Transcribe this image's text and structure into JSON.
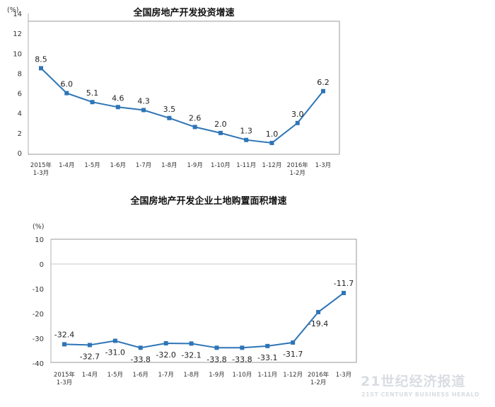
{
  "chart_data": [
    {
      "type": "line",
      "title": "全国房地产开发投资增速",
      "unit": "(%)",
      "categories": [
        [
          "2015年",
          "1-3月"
        ],
        [
          "1-4月"
        ],
        [
          "1-5月"
        ],
        [
          "1-6月"
        ],
        [
          "1-7月"
        ],
        [
          "1-8月"
        ],
        [
          "1-9月"
        ],
        [
          "1-10月"
        ],
        [
          "1-11月"
        ],
        [
          "1-12月"
        ],
        [
          "2016年",
          "1-2月"
        ],
        [
          "1-3月"
        ]
      ],
      "values": [
        8.5,
        6.0,
        5.1,
        4.6,
        4.3,
        3.5,
        2.6,
        2.0,
        1.3,
        1.0,
        3.0,
        6.2
      ],
      "value_labels": [
        "8.5",
        "6.0",
        "5.1",
        "4.6",
        "4.3",
        "3.5",
        "2.6",
        "2.0",
        "1.3",
        "1.0",
        "3.0",
        "6.2"
      ],
      "label_position": [
        "above",
        "above",
        "above",
        "above",
        "above",
        "above",
        "above",
        "above",
        "above",
        "above",
        "above",
        "above"
      ],
      "ylim": [
        0,
        14
      ],
      "yticks": [
        0,
        2,
        4,
        6,
        8,
        10,
        12,
        14
      ],
      "color": "#2e75b6",
      "grid": false
    },
    {
      "type": "line",
      "title": "全国房地产开发企业土地购置面积增速",
      "unit": "(%)",
      "categories": [
        [
          "2015年",
          "1-3月"
        ],
        [
          "1-4月"
        ],
        [
          "1-5月"
        ],
        [
          "1-6月"
        ],
        [
          "1-7月"
        ],
        [
          "1-8月"
        ],
        [
          "1-9月"
        ],
        [
          "1-10月"
        ],
        [
          "1-11月"
        ],
        [
          "1-12月"
        ],
        [
          "2016年",
          "1-2月"
        ],
        [
          "1-3月"
        ]
      ],
      "values": [
        -32.4,
        -32.7,
        -31.0,
        -33.8,
        -32.0,
        -32.1,
        -33.8,
        -33.8,
        -33.1,
        -31.7,
        -19.4,
        -11.7
      ],
      "value_labels": [
        "-32.4",
        "-32.7",
        "-31.0",
        "-33.8",
        "-32.0",
        "-32.1",
        "-33.8",
        "-33.8",
        "-33.1",
        "-31.7",
        "-19.4",
        "-11.7"
      ],
      "label_position": [
        "above",
        "below",
        "below",
        "below",
        "below",
        "below",
        "below",
        "below",
        "below",
        "below",
        "below",
        "above"
      ],
      "ylim": [
        -40,
        10
      ],
      "yticks": [
        -40,
        -30,
        -20,
        -10,
        0,
        10
      ],
      "color": "#2e75b6",
      "grid": false
    }
  ],
  "watermark": {
    "main": "21世纪经济报道",
    "sub": "21ST CENTURY BUSINESS HERALD"
  }
}
